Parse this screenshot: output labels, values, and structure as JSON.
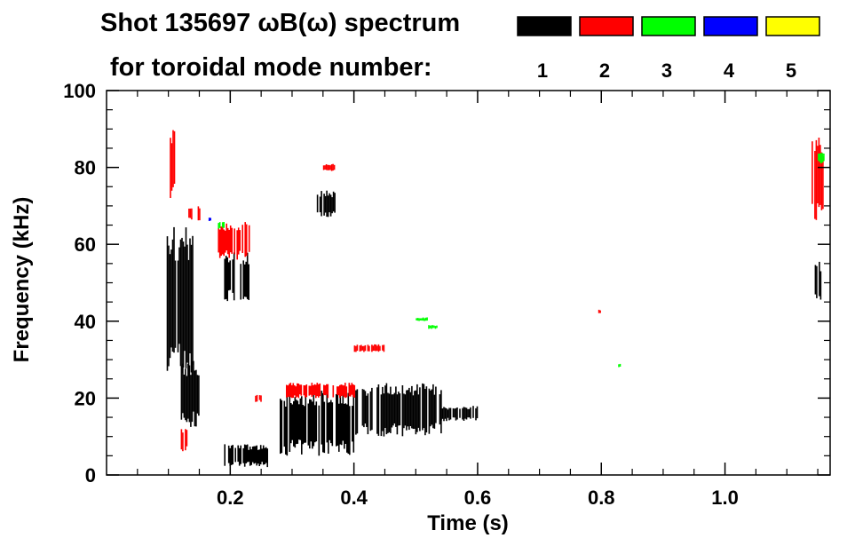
{
  "chart_data": {
    "type": "heatmap",
    "title": "Shot 135697 ωB(ω) spectrum",
    "subtitle": "for toroidal mode number:",
    "xlabel": "Time (s)",
    "ylabel": "Frequency (kHz)",
    "xlim": [
      0.0,
      1.17
    ],
    "ylim": [
      0,
      100
    ],
    "xticks": [
      {
        "value": 0.2,
        "label": "0.2"
      },
      {
        "value": 0.4,
        "label": "0.4"
      },
      {
        "value": 0.6,
        "label": "0.6"
      },
      {
        "value": 0.8,
        "label": "0.8"
      },
      {
        "value": 1.0,
        "label": "1.0"
      }
    ],
    "yticks": [
      {
        "value": 0,
        "label": "0"
      },
      {
        "value": 20,
        "label": "20"
      },
      {
        "value": 40,
        "label": "40"
      },
      {
        "value": 60,
        "label": "60"
      },
      {
        "value": 80,
        "label": "80"
      },
      {
        "value": 100,
        "label": "100"
      }
    ],
    "legend": [
      {
        "mode": "1",
        "color": "#000000"
      },
      {
        "mode": "2",
        "color": "#ff0000"
      },
      {
        "mode": "3",
        "color": "#00ff00"
      },
      {
        "mode": "4",
        "color": "#0000ff"
      },
      {
        "mode": "5",
        "color": "#ffff00"
      }
    ],
    "series": [
      {
        "name": "n=1",
        "color": "#000000",
        "regions": [
          {
            "t0": 0.095,
            "t1": 0.14,
            "f0": 25,
            "f1": 65
          },
          {
            "t0": 0.12,
            "t1": 0.15,
            "f0": 12,
            "f1": 30
          },
          {
            "t0": 0.19,
            "t1": 0.26,
            "f0": 2,
            "f1": 8
          },
          {
            "t0": 0.19,
            "t1": 0.23,
            "f0": 45,
            "f1": 58
          },
          {
            "t0": 0.28,
            "t1": 0.4,
            "f0": 5,
            "f1": 22
          },
          {
            "t0": 0.4,
            "t1": 0.54,
            "f0": 10,
            "f1": 24
          },
          {
            "t0": 0.54,
            "t1": 0.6,
            "f0": 14,
            "f1": 18
          },
          {
            "t0": 0.34,
            "t1": 0.37,
            "f0": 67,
            "f1": 74
          },
          {
            "t0": 1.145,
            "t1": 1.155,
            "f0": 44,
            "f1": 56
          }
        ]
      },
      {
        "name": "n=2",
        "color": "#ff0000",
        "regions": [
          {
            "t0": 0.1,
            "t1": 0.11,
            "f0": 72,
            "f1": 90
          },
          {
            "t0": 0.13,
            "t1": 0.15,
            "f0": 66,
            "f1": 70
          },
          {
            "t0": 0.18,
            "t1": 0.23,
            "f0": 56,
            "f1": 66
          },
          {
            "t0": 0.12,
            "t1": 0.13,
            "f0": 6,
            "f1": 12
          },
          {
            "t0": 0.29,
            "t1": 0.4,
            "f0": 20,
            "f1": 24
          },
          {
            "t0": 0.4,
            "t1": 0.45,
            "f0": 32,
            "f1": 34
          },
          {
            "t0": 0.35,
            "t1": 0.37,
            "f0": 79,
            "f1": 81
          },
          {
            "t0": 0.24,
            "t1": 0.25,
            "f0": 19,
            "f1": 21
          },
          {
            "t0": 1.14,
            "t1": 1.16,
            "f0": 65,
            "f1": 88
          },
          {
            "t0": 0.795,
            "t1": 0.8,
            "f0": 42,
            "f1": 43
          }
        ]
      },
      {
        "name": "n=3",
        "color": "#00ff00",
        "regions": [
          {
            "t0": 0.5,
            "t1": 0.52,
            "f0": 40,
            "f1": 41
          },
          {
            "t0": 0.52,
            "t1": 0.535,
            "f0": 38,
            "f1": 39
          },
          {
            "t0": 0.18,
            "t1": 0.19,
            "f0": 64,
            "f1": 66
          },
          {
            "t0": 1.15,
            "t1": 1.16,
            "f0": 81,
            "f1": 84
          },
          {
            "t0": 0.825,
            "t1": 0.83,
            "f0": 28,
            "f1": 29
          }
        ]
      },
      {
        "name": "n=4",
        "color": "#0000ff",
        "regions": [
          {
            "t0": 0.165,
            "t1": 0.17,
            "f0": 66,
            "f1": 67
          }
        ]
      },
      {
        "name": "n=5",
        "color": "#ffff00",
        "regions": []
      }
    ]
  }
}
